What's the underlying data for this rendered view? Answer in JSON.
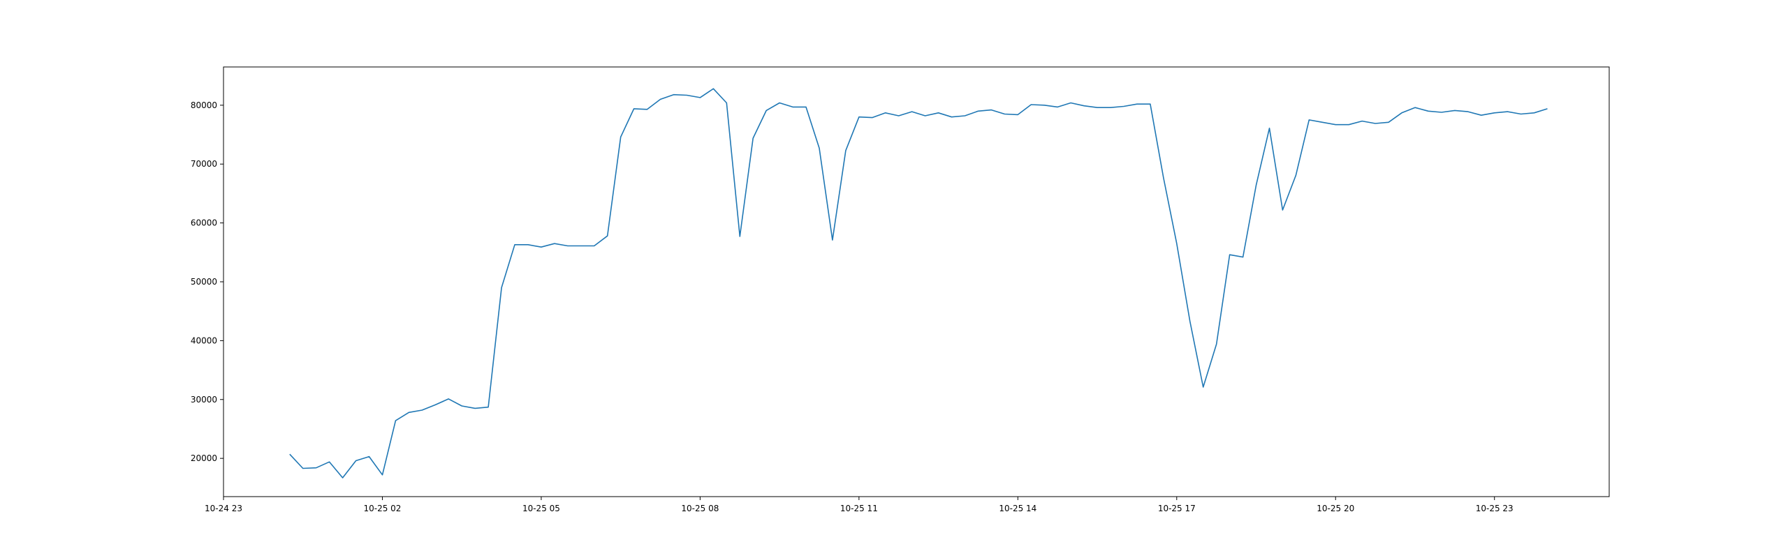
{
  "chart_data": {
    "type": "line",
    "title": "",
    "xlabel": "",
    "ylabel": "",
    "grid": false,
    "legend": "none",
    "line_color": "#1f77b4",
    "xlim": [
      "2025-10-24 23:00",
      "2025-10-26 01:10"
    ],
    "ylim": [
      13500,
      86500
    ],
    "x_ticks": [
      {
        "value": "2025-10-24 23:00",
        "label": "10-24 23"
      },
      {
        "value": "2025-10-25 02:00",
        "label": "10-25 02"
      },
      {
        "value": "2025-10-25 05:00",
        "label": "10-25 05"
      },
      {
        "value": "2025-10-25 08:00",
        "label": "10-25 08"
      },
      {
        "value": "2025-10-25 11:00",
        "label": "10-25 11"
      },
      {
        "value": "2025-10-25 14:00",
        "label": "10-25 14"
      },
      {
        "value": "2025-10-25 17:00",
        "label": "10-25 17"
      },
      {
        "value": "2025-10-25 20:00",
        "label": "10-25 20"
      },
      {
        "value": "2025-10-25 23:00",
        "label": "10-25 23"
      }
    ],
    "y_ticks": [
      {
        "value": 20000,
        "label": "20000"
      },
      {
        "value": 30000,
        "label": "30000"
      },
      {
        "value": 40000,
        "label": "40000"
      },
      {
        "value": 50000,
        "label": "50000"
      },
      {
        "value": 60000,
        "label": "60000"
      },
      {
        "value": 70000,
        "label": "70000"
      },
      {
        "value": 80000,
        "label": "80000"
      }
    ],
    "series": [
      {
        "x": [
          "2025-10-25 00:15",
          "2025-10-25 00:30",
          "2025-10-25 00:45",
          "2025-10-25 01:00",
          "2025-10-25 01:15",
          "2025-10-25 01:30",
          "2025-10-25 01:45",
          "2025-10-25 02:00",
          "2025-10-25 02:15",
          "2025-10-25 02:30",
          "2025-10-25 02:45",
          "2025-10-25 03:00",
          "2025-10-25 03:15",
          "2025-10-25 03:30",
          "2025-10-25 03:45",
          "2025-10-25 04:00",
          "2025-10-25 04:15",
          "2025-10-25 04:30",
          "2025-10-25 04:45",
          "2025-10-25 05:00",
          "2025-10-25 05:15",
          "2025-10-25 05:30",
          "2025-10-25 05:45",
          "2025-10-25 06:00",
          "2025-10-25 06:15",
          "2025-10-25 06:30",
          "2025-10-25 06:45",
          "2025-10-25 07:00",
          "2025-10-25 07:15",
          "2025-10-25 07:30",
          "2025-10-25 07:45",
          "2025-10-25 08:00",
          "2025-10-25 08:15",
          "2025-10-25 08:30",
          "2025-10-25 08:45",
          "2025-10-25 09:00",
          "2025-10-25 09:15",
          "2025-10-25 09:30",
          "2025-10-25 09:45",
          "2025-10-25 10:00",
          "2025-10-25 10:15",
          "2025-10-25 10:30",
          "2025-10-25 10:45",
          "2025-10-25 11:00",
          "2025-10-25 11:15",
          "2025-10-25 11:30",
          "2025-10-25 11:45",
          "2025-10-25 12:00",
          "2025-10-25 12:15",
          "2025-10-25 12:30",
          "2025-10-25 12:45",
          "2025-10-25 13:00",
          "2025-10-25 13:15",
          "2025-10-25 13:30",
          "2025-10-25 13:45",
          "2025-10-25 14:00",
          "2025-10-25 14:15",
          "2025-10-25 14:30",
          "2025-10-25 14:45",
          "2025-10-25 15:00",
          "2025-10-25 15:15",
          "2025-10-25 15:30",
          "2025-10-25 15:45",
          "2025-10-25 16:00",
          "2025-10-25 16:15",
          "2025-10-25 16:30",
          "2025-10-25 16:45",
          "2025-10-25 17:00",
          "2025-10-25 17:15",
          "2025-10-25 17:30",
          "2025-10-25 17:45",
          "2025-10-25 18:00",
          "2025-10-25 18:15",
          "2025-10-25 18:30",
          "2025-10-25 18:45",
          "2025-10-25 19:00",
          "2025-10-25 19:15",
          "2025-10-25 19:30",
          "2025-10-25 19:45",
          "2025-10-25 20:00",
          "2025-10-25 20:15",
          "2025-10-25 20:30",
          "2025-10-25 20:45",
          "2025-10-25 21:00",
          "2025-10-25 21:15",
          "2025-10-25 21:30",
          "2025-10-25 21:45",
          "2025-10-25 22:00",
          "2025-10-25 22:15",
          "2025-10-25 22:30",
          "2025-10-25 22:45",
          "2025-10-25 23:00",
          "2025-10-25 23:15",
          "2025-10-25 23:30",
          "2025-10-25 23:45",
          "2025-10-26 00:00"
        ],
        "values": [
          20700,
          18300,
          18400,
          19400,
          16700,
          19600,
          20300,
          17200,
          26400,
          27800,
          28200,
          29100,
          30100,
          28900,
          28500,
          28700,
          49000,
          56300,
          56300,
          55900,
          56500,
          56100,
          56100,
          56100,
          57800,
          74600,
          79400,
          79300,
          81000,
          81800,
          81700,
          81300,
          82800,
          80400,
          57700,
          74400,
          79100,
          80400,
          79700,
          79700,
          72700,
          57100,
          72300,
          78000,
          77900,
          78700,
          78200,
          78900,
          78200,
          78700,
          78000,
          78200,
          79000,
          79200,
          78500,
          78400,
          80100,
          80000,
          79700,
          80400,
          79900,
          79600,
          79600,
          79800,
          80200,
          80200,
          67700,
          56500,
          43300,
          32100,
          39400,
          54600,
          54200,
          66400,
          76100,
          62200,
          68100,
          77500,
          77100,
          76700,
          76700,
          77300,
          76900,
          77100,
          78700,
          79600,
          79000,
          78800,
          79100,
          78900,
          78300,
          78700,
          78900,
          78500,
          78700,
          79400
        ]
      }
    ]
  }
}
